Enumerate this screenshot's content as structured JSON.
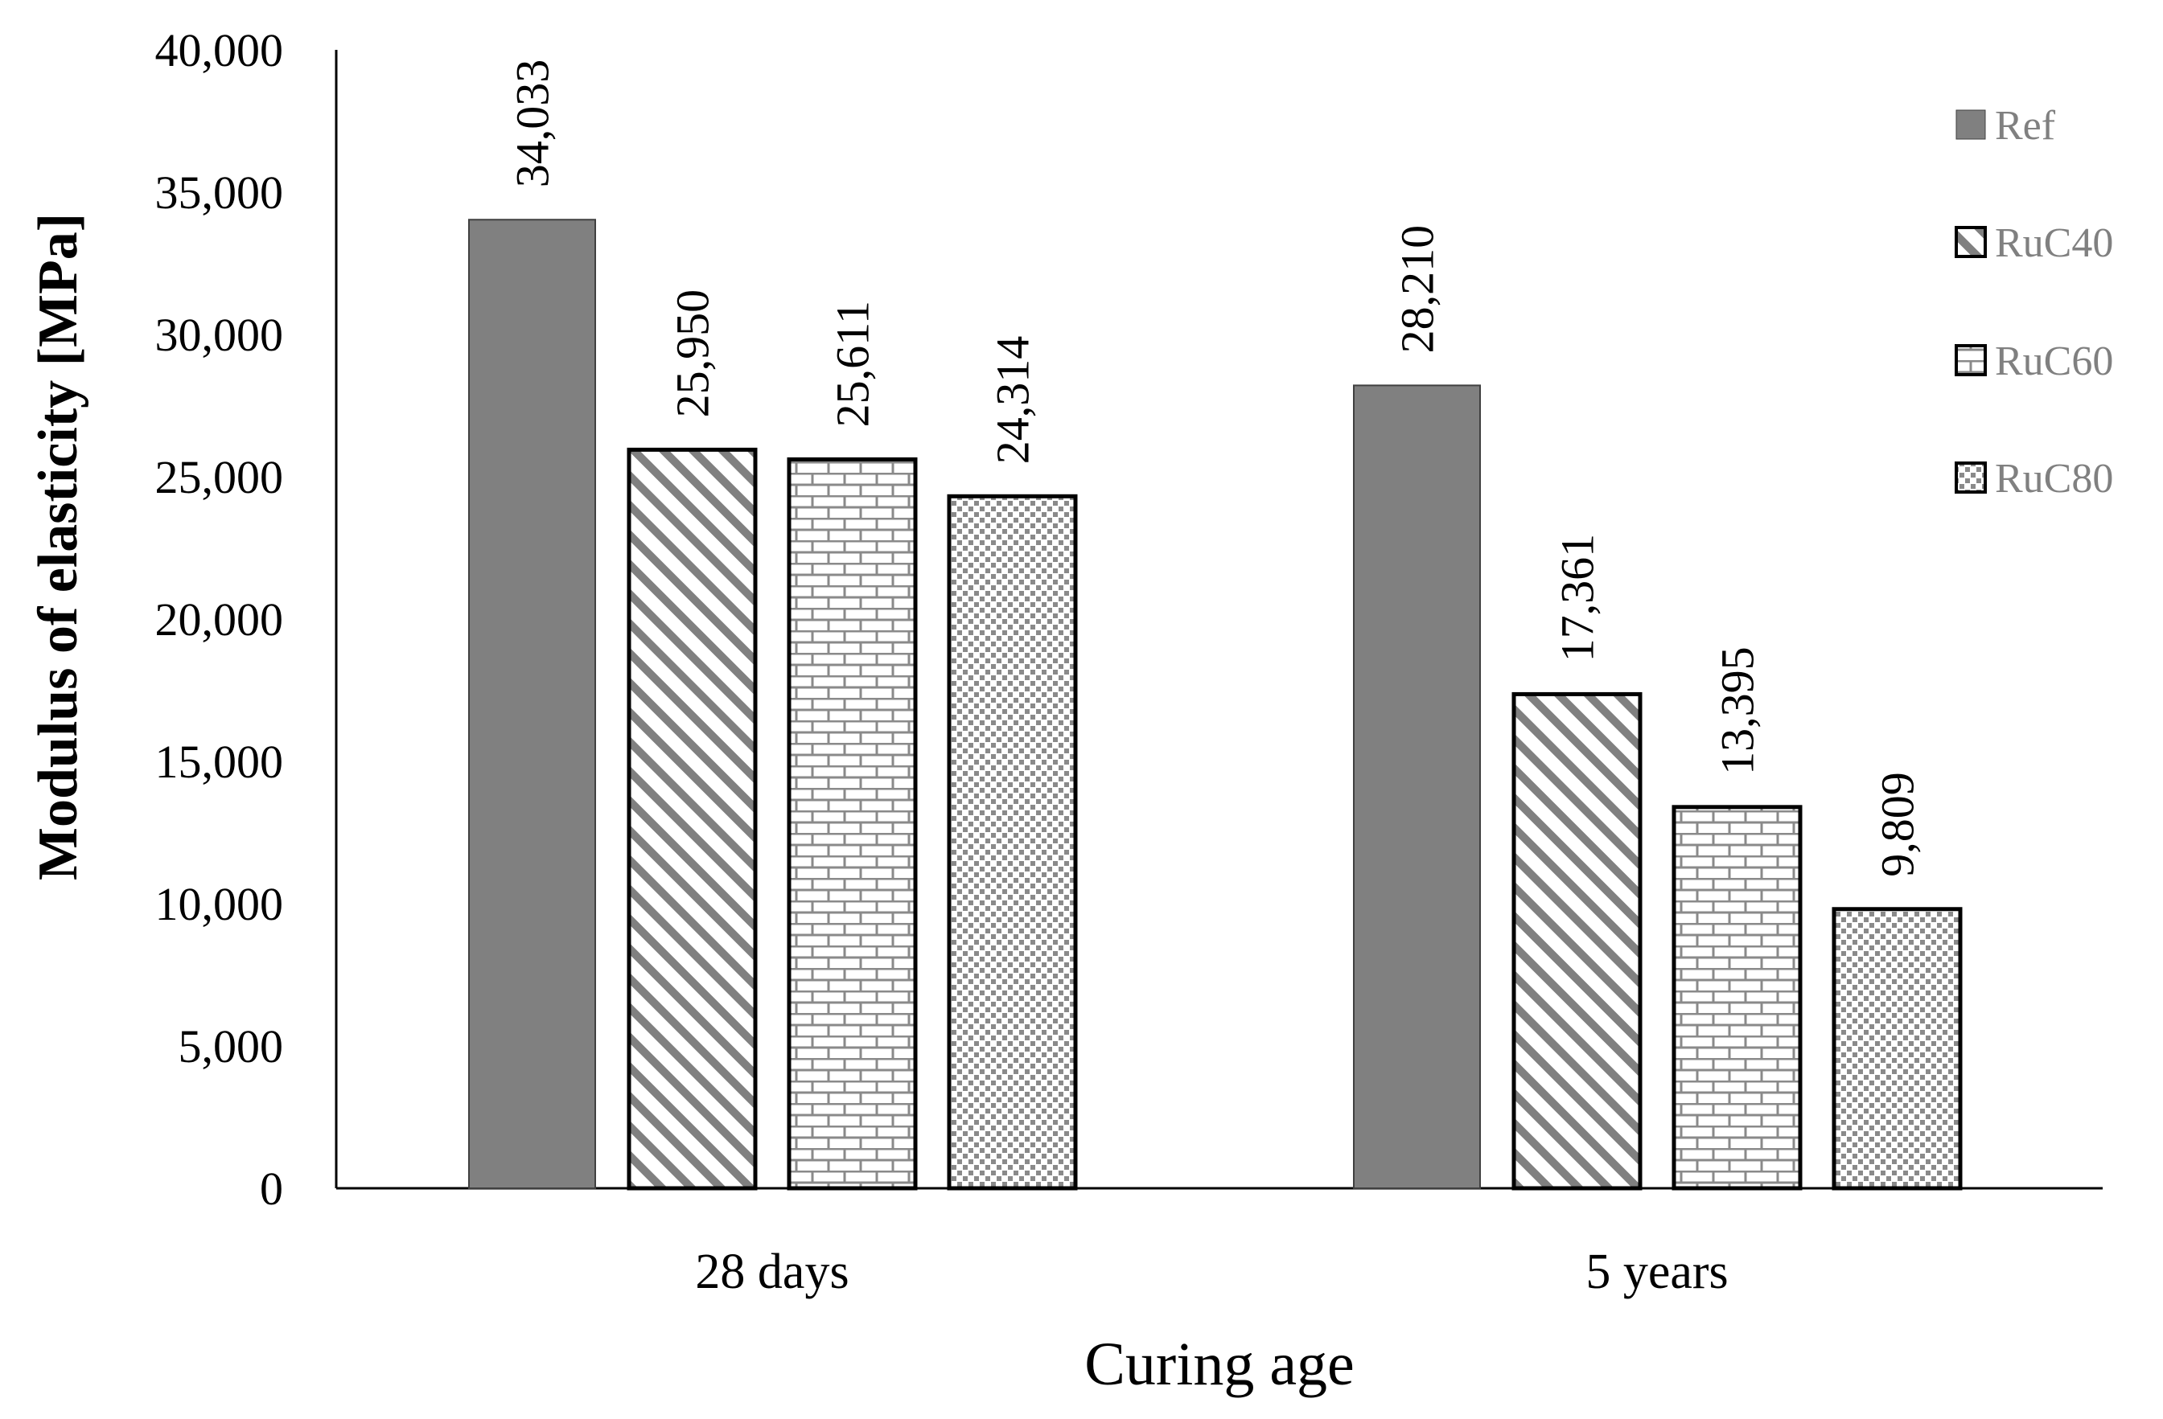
{
  "chart_data": {
    "type": "bar",
    "title": "",
    "xlabel": "Curing age",
    "ylabel": "Modulus of elasticity  [MPa]",
    "categories": [
      "28 days",
      "5 years"
    ],
    "ylim": [
      0,
      40000
    ],
    "yticks": [
      0,
      5000,
      10000,
      15000,
      20000,
      25000,
      30000,
      35000,
      40000
    ],
    "ytick_labels": [
      "0",
      "5,000",
      "10,000",
      "15,000",
      "20,000",
      "25,000",
      "30,000",
      "35,000",
      "40,000"
    ],
    "grid": false,
    "legend_position": "right",
    "series": [
      {
        "name": "Ref",
        "pattern": "solid",
        "values": [
          34033,
          28210
        ],
        "value_labels": [
          "34,033",
          "28,210"
        ]
      },
      {
        "name": "RuC40",
        "pattern": "diagonal",
        "values": [
          25950,
          17361
        ],
        "value_labels": [
          "25,950",
          "17,361"
        ]
      },
      {
        "name": "RuC60",
        "pattern": "brick",
        "values": [
          25611,
          13395
        ],
        "value_labels": [
          "25,611",
          "13,395"
        ]
      },
      {
        "name": "RuC80",
        "pattern": "dots",
        "values": [
          24314,
          9809
        ],
        "value_labels": [
          "24,314",
          "9,809"
        ]
      }
    ],
    "colors": {
      "solid_fill": "#808080",
      "pattern_ink": "#808080",
      "outline": "#000000",
      "axis": "#000000",
      "legend_text": "#808080"
    }
  }
}
